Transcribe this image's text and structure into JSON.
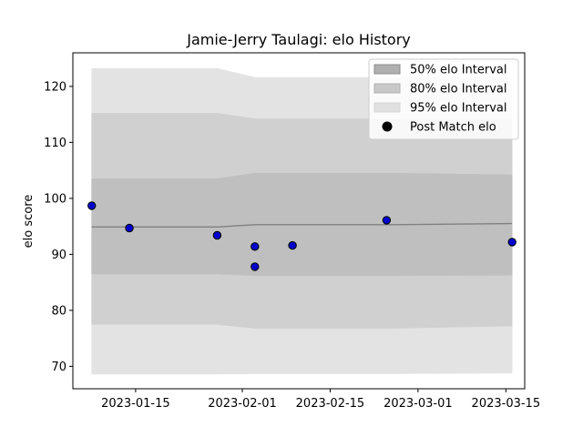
{
  "chart_data": {
    "type": "scatter",
    "title": "Jamie-Jerry Taulagi: elo History",
    "xlabel": "",
    "ylabel": "elo score",
    "xlim": [
      "2023-01-05",
      "2023-03-18"
    ],
    "ylim": [
      66,
      126
    ],
    "x_ticks": [
      "2023-01-15",
      "2023-02-01",
      "2023-02-15",
      "2023-03-01",
      "2023-03-15"
    ],
    "y_ticks": [
      70,
      80,
      90,
      100,
      110,
      120
    ],
    "grid": false,
    "legend_position": "top-right",
    "legend": [
      {
        "label": "50% elo Interval",
        "kind": "band",
        "color": "#a9a9a9"
      },
      {
        "label": "80% elo Interval",
        "kind": "band",
        "color": "#bdbdbd"
      },
      {
        "label": "95% elo Interval",
        "kind": "band",
        "color": "#e0e0e0"
      },
      {
        "label": "Post Match elo",
        "kind": "marker",
        "color": "#000000"
      }
    ],
    "colors": {
      "band_95": "#e3e3e3",
      "band_80": "#d0d0d0",
      "band_50": "#bfbfbf",
      "mean_line": "#808080",
      "point_fill": "#0000cc",
      "point_edge": "#000000"
    },
    "interval_dates": [
      "2023-01-08",
      "2023-01-28",
      "2023-02-03",
      "2023-02-25",
      "2023-03-16"
    ],
    "mean": [
      94.9,
      94.9,
      95.3,
      95.3,
      95.5
    ],
    "band_50": {
      "lower": [
        86.5,
        86.5,
        86.2,
        86.2,
        86.3
      ],
      "upper": [
        103.5,
        103.5,
        104.5,
        104.5,
        104.2
      ]
    },
    "band_80": {
      "lower": [
        77.5,
        77.5,
        76.8,
        76.8,
        77.2
      ],
      "upper": [
        115.2,
        115.2,
        114.2,
        114.2,
        114.2
      ]
    },
    "band_95": {
      "lower": [
        68.6,
        68.6,
        68.7,
        68.7,
        68.8
      ],
      "upper": [
        123.2,
        123.2,
        121.6,
        121.6,
        121.6
      ]
    },
    "points": [
      {
        "x": "2023-01-08",
        "y": 98.7
      },
      {
        "x": "2023-01-14",
        "y": 94.7
      },
      {
        "x": "2023-01-28",
        "y": 93.4
      },
      {
        "x": "2023-02-03",
        "y": 91.4
      },
      {
        "x": "2023-02-03",
        "y": 87.8
      },
      {
        "x": "2023-02-09",
        "y": 91.6
      },
      {
        "x": "2023-02-24",
        "y": 96.1
      },
      {
        "x": "2023-03-16",
        "y": 92.2
      }
    ]
  }
}
